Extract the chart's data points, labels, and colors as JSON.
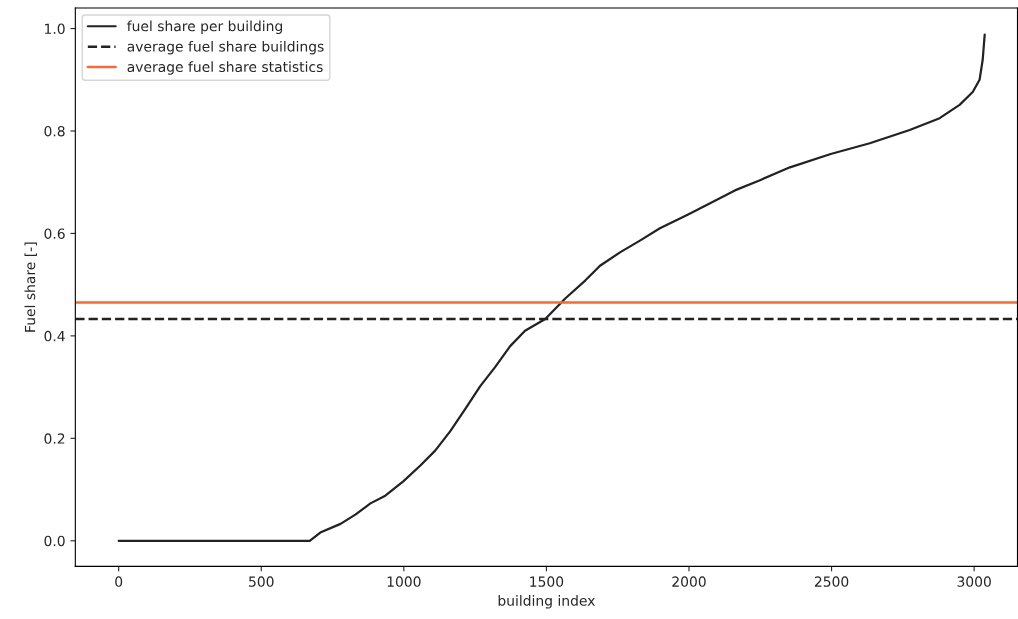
{
  "chart_data": {
    "type": "line",
    "xlabel": "building index",
    "ylabel": "Fuel share [-]",
    "series": [
      {
        "name": "fuel share per building",
        "color": "#222222",
        "x": [
          0,
          670,
          707,
          778,
          830,
          883,
          935,
          998,
          1058,
          1110,
          1163,
          1215,
          1268,
          1320,
          1373,
          1425,
          1496,
          1566,
          1636,
          1688,
          1758,
          1828,
          1898,
          1997,
          2074,
          2161,
          2249,
          2354,
          2497,
          2634,
          2774,
          2879,
          2949,
          2995,
          3019,
          3030,
          3037
        ],
        "values": [
          0,
          0,
          0.016,
          0.033,
          0.051,
          0.073,
          0.088,
          0.116,
          0.147,
          0.176,
          0.214,
          0.257,
          0.302,
          0.339,
          0.38,
          0.41,
          0.433,
          0.473,
          0.508,
          0.537,
          0.563,
          0.586,
          0.61,
          0.637,
          0.659,
          0.684,
          0.704,
          0.729,
          0.755,
          0.776,
          0.802,
          0.825,
          0.851,
          0.876,
          0.9,
          0.939,
          0.988
        ]
      }
    ],
    "ref_lines": [
      {
        "axis": "y",
        "value": 0.433,
        "label": "average fuel share buildings",
        "color": "#222222",
        "line_style": "dashed"
      },
      {
        "axis": "y",
        "value": 0.465,
        "label": "average fuel share statistics",
        "color": "#f26b38",
        "line_style": "solid"
      }
    ],
    "xlim": [
      -152,
      3152
    ],
    "ylim": [
      -0.05,
      1.04
    ],
    "xticks": [
      0,
      500,
      1000,
      1500,
      2000,
      2500,
      3000
    ],
    "yticks": [
      {
        "value": 0,
        "label": "0.0"
      },
      {
        "value": 0.2,
        "label": "0.2"
      },
      {
        "value": 0.4,
        "label": "0.4"
      },
      {
        "value": 0.6,
        "label": "0.6"
      },
      {
        "value": 0.8,
        "label": "0.8"
      },
      {
        "value": 1.0,
        "label": "1.0"
      }
    ],
    "legend": "top left",
    "grid": false
  }
}
